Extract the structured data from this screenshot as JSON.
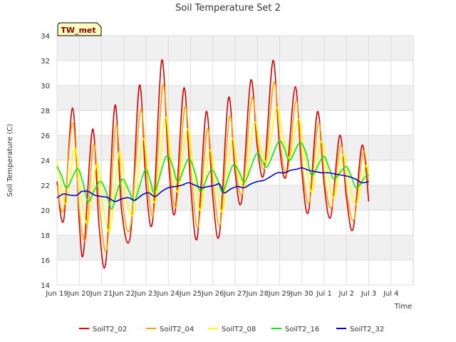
{
  "chart_data": {
    "type": "line",
    "title": "Soil Temperature Set 2",
    "xlabel": "Time",
    "ylabel": "Soil Temperature (C)",
    "annotation": "TW_met",
    "ylim": [
      14,
      34
    ],
    "yticks": [
      14,
      16,
      18,
      20,
      22,
      24,
      26,
      28,
      30,
      32,
      34
    ],
    "xlim": [
      0,
      16
    ],
    "xticks": [
      {
        "x": 0,
        "label": "Jun 19"
      },
      {
        "x": 1,
        "label": "Jun 20"
      },
      {
        "x": 2,
        "label": "Jun 21"
      },
      {
        "x": 3,
        "label": "Jun 22"
      },
      {
        "x": 4,
        "label": "Jun 23"
      },
      {
        "x": 5,
        "label": "Jun 24"
      },
      {
        "x": 6,
        "label": "Jun 25"
      },
      {
        "x": 7,
        "label": "Jun 26"
      },
      {
        "x": 8,
        "label": "Jun 27"
      },
      {
        "x": 9,
        "label": "Jun 28"
      },
      {
        "x": 10,
        "label": "Jun 29"
      },
      {
        "x": 11,
        "label": "Jun 30"
      },
      {
        "x": 12,
        "label": "Jul 1"
      },
      {
        "x": 13,
        "label": "Jul 2"
      },
      {
        "x": 14,
        "label": "Jul 3"
      },
      {
        "x": 15,
        "label": "Jul 4"
      }
    ],
    "grid": true,
    "legend_position": "bottom",
    "series": [
      {
        "name": "SoilT2_02",
        "color": "#dd0000",
        "points": [
          [
            0.0,
            22.3
          ],
          [
            0.3,
            19.2
          ],
          [
            0.7,
            28.2
          ],
          [
            1.0,
            19.0
          ],
          [
            1.2,
            16.7
          ],
          [
            1.6,
            26.5
          ],
          [
            1.9,
            18.5
          ],
          [
            2.2,
            15.9
          ],
          [
            2.6,
            28.4
          ],
          [
            2.9,
            20.0
          ],
          [
            3.3,
            18.0
          ],
          [
            3.7,
            30.0
          ],
          [
            4.0,
            22.0
          ],
          [
            4.3,
            19.2
          ],
          [
            4.7,
            32.0
          ],
          [
            5.0,
            24.0
          ],
          [
            5.3,
            19.8
          ],
          [
            5.7,
            29.8
          ],
          [
            6.0,
            22.0
          ],
          [
            6.3,
            17.8
          ],
          [
            6.7,
            27.9
          ],
          [
            7.0,
            21.0
          ],
          [
            7.3,
            18.1
          ],
          [
            7.7,
            29.0
          ],
          [
            8.0,
            23.0
          ],
          [
            8.3,
            20.8
          ],
          [
            8.7,
            30.4
          ],
          [
            9.0,
            25.0
          ],
          [
            9.3,
            23.0
          ],
          [
            9.7,
            32.0
          ],
          [
            10.0,
            25.0
          ],
          [
            10.3,
            22.8
          ],
          [
            10.7,
            29.9
          ],
          [
            11.0,
            23.0
          ],
          [
            11.3,
            19.9
          ],
          [
            11.7,
            27.9
          ],
          [
            12.0,
            22.0
          ],
          [
            12.3,
            19.5
          ],
          [
            12.7,
            26.0
          ],
          [
            13.0,
            21.0
          ],
          [
            13.3,
            18.5
          ],
          [
            13.7,
            25.2
          ],
          [
            14.0,
            20.7
          ]
        ]
      },
      {
        "name": "SoilT2_04",
        "color": "#ffa500",
        "points": [
          [
            0.0,
            22.0
          ],
          [
            0.3,
            20.0
          ],
          [
            0.7,
            27.0
          ],
          [
            1.0,
            20.0
          ],
          [
            1.3,
            17.8
          ],
          [
            1.65,
            25.3
          ],
          [
            1.95,
            19.5
          ],
          [
            2.25,
            17.0
          ],
          [
            2.65,
            26.8
          ],
          [
            2.95,
            20.5
          ],
          [
            3.3,
            18.7
          ],
          [
            3.75,
            28.0
          ],
          [
            4.05,
            22.5
          ],
          [
            4.35,
            19.8
          ],
          [
            4.75,
            30.0
          ],
          [
            5.05,
            24.0
          ],
          [
            5.35,
            20.3
          ],
          [
            5.75,
            28.3
          ],
          [
            6.05,
            22.5
          ],
          [
            6.35,
            18.7
          ],
          [
            6.75,
            26.5
          ],
          [
            7.05,
            21.5
          ],
          [
            7.35,
            19.0
          ],
          [
            7.75,
            27.5
          ],
          [
            8.05,
            23.0
          ],
          [
            8.35,
            21.5
          ],
          [
            8.75,
            29.0
          ],
          [
            9.05,
            25.0
          ],
          [
            9.35,
            23.5
          ],
          [
            9.75,
            30.3
          ],
          [
            10.05,
            25.0
          ],
          [
            10.35,
            23.0
          ],
          [
            10.75,
            28.8
          ],
          [
            11.05,
            23.0
          ],
          [
            11.35,
            20.7
          ],
          [
            11.75,
            27.0
          ],
          [
            12.05,
            22.0
          ],
          [
            12.35,
            20.3
          ],
          [
            12.75,
            25.2
          ],
          [
            13.05,
            21.0
          ],
          [
            13.35,
            19.3
          ],
          [
            13.75,
            24.7
          ],
          [
            14.0,
            22.0
          ]
        ]
      },
      {
        "name": "SoilT2_08",
        "color": "#ffff00",
        "points": [
          [
            0.0,
            24.0
          ],
          [
            0.4,
            20.5
          ],
          [
            0.8,
            25.0
          ],
          [
            1.1,
            21.0
          ],
          [
            1.4,
            19.0
          ],
          [
            1.8,
            23.8
          ],
          [
            2.1,
            20.0
          ],
          [
            2.4,
            18.5
          ],
          [
            2.8,
            24.7
          ],
          [
            3.1,
            21.0
          ],
          [
            3.45,
            19.8
          ],
          [
            3.85,
            25.7
          ],
          [
            4.15,
            22.5
          ],
          [
            4.45,
            20.8
          ],
          [
            4.85,
            27.4
          ],
          [
            5.15,
            24.0
          ],
          [
            5.45,
            21.5
          ],
          [
            5.85,
            26.5
          ],
          [
            6.15,
            23.0
          ],
          [
            6.45,
            20.0
          ],
          [
            6.85,
            24.8
          ],
          [
            7.15,
            22.0
          ],
          [
            7.45,
            20.0
          ],
          [
            7.85,
            25.7
          ],
          [
            8.15,
            23.0
          ],
          [
            8.45,
            22.0
          ],
          [
            8.85,
            27.0
          ],
          [
            9.15,
            25.0
          ],
          [
            9.45,
            24.0
          ],
          [
            9.85,
            28.2
          ],
          [
            10.15,
            26.0
          ],
          [
            10.45,
            24.2
          ],
          [
            10.85,
            27.3
          ],
          [
            11.15,
            24.0
          ],
          [
            11.45,
            21.5
          ],
          [
            11.85,
            25.5
          ],
          [
            12.15,
            23.0
          ],
          [
            12.45,
            21.0
          ],
          [
            12.85,
            24.5
          ],
          [
            13.15,
            22.0
          ],
          [
            13.45,
            20.5
          ],
          [
            13.85,
            23.5
          ],
          [
            14.0,
            23.0
          ]
        ]
      },
      {
        "name": "SoilT2_16",
        "color": "#00ee00",
        "points": [
          [
            0.0,
            23.5
          ],
          [
            0.2,
            22.8
          ],
          [
            0.45,
            21.8
          ],
          [
            0.9,
            23.3
          ],
          [
            1.15,
            22.3
          ],
          [
            1.4,
            20.7
          ],
          [
            1.65,
            21.5
          ],
          [
            1.95,
            22.3
          ],
          [
            2.2,
            21.5
          ],
          [
            2.45,
            20.1
          ],
          [
            2.7,
            21.5
          ],
          [
            2.95,
            22.5
          ],
          [
            3.25,
            21.5
          ],
          [
            3.5,
            20.8
          ],
          [
            3.95,
            23.2
          ],
          [
            4.2,
            22.3
          ],
          [
            4.4,
            21.5
          ],
          [
            4.9,
            24.3
          ],
          [
            5.2,
            23.5
          ],
          [
            5.45,
            22.3
          ],
          [
            5.9,
            24.1
          ],
          [
            6.2,
            23.0
          ],
          [
            6.45,
            21.5
          ],
          [
            6.9,
            23.2
          ],
          [
            7.2,
            22.5
          ],
          [
            7.45,
            21.5
          ],
          [
            7.9,
            23.6
          ],
          [
            8.2,
            23.0
          ],
          [
            8.45,
            22.3
          ],
          [
            8.95,
            24.5
          ],
          [
            9.2,
            24.0
          ],
          [
            9.45,
            23.5
          ],
          [
            9.95,
            25.5
          ],
          [
            10.2,
            25.0
          ],
          [
            10.45,
            24.0
          ],
          [
            10.9,
            25.4
          ],
          [
            11.2,
            24.5
          ],
          [
            11.45,
            22.8
          ],
          [
            11.95,
            24.3
          ],
          [
            12.2,
            23.5
          ],
          [
            12.45,
            22.5
          ],
          [
            12.95,
            23.5
          ],
          [
            13.2,
            22.8
          ],
          [
            13.45,
            21.8
          ],
          [
            13.85,
            22.7
          ],
          [
            14.0,
            22.8
          ]
        ]
      },
      {
        "name": "SoilT2_32",
        "color": "#0000cc",
        "points": [
          [
            0.0,
            21.0
          ],
          [
            0.3,
            21.3
          ],
          [
            0.6,
            21.2
          ],
          [
            0.9,
            21.2
          ],
          [
            1.1,
            21.5
          ],
          [
            1.4,
            21.5
          ],
          [
            1.7,
            21.2
          ],
          [
            2.0,
            21.1
          ],
          [
            2.3,
            21.0
          ],
          [
            2.6,
            20.7
          ],
          [
            2.9,
            20.9
          ],
          [
            3.2,
            21.0
          ],
          [
            3.5,
            20.8
          ],
          [
            3.8,
            21.2
          ],
          [
            4.1,
            21.4
          ],
          [
            4.4,
            21.1
          ],
          [
            4.7,
            21.5
          ],
          [
            5.0,
            21.8
          ],
          [
            5.3,
            21.9
          ],
          [
            5.6,
            22.0
          ],
          [
            5.9,
            22.2
          ],
          [
            6.2,
            22.0
          ],
          [
            6.5,
            21.8
          ],
          [
            6.8,
            21.9
          ],
          [
            7.1,
            22.0
          ],
          [
            7.3,
            22.1
          ],
          [
            7.5,
            21.4
          ],
          [
            7.8,
            21.7
          ],
          [
            8.1,
            21.9
          ],
          [
            8.4,
            21.8
          ],
          [
            8.7,
            22.1
          ],
          [
            9.0,
            22.3
          ],
          [
            9.3,
            22.4
          ],
          [
            9.6,
            22.7
          ],
          [
            9.9,
            23.0
          ],
          [
            10.2,
            23.0
          ],
          [
            10.5,
            23.2
          ],
          [
            10.8,
            23.3
          ],
          [
            11.0,
            23.4
          ],
          [
            11.3,
            23.2
          ],
          [
            11.6,
            23.1
          ],
          [
            11.9,
            23.0
          ],
          [
            12.2,
            23.0
          ],
          [
            12.5,
            22.9
          ],
          [
            12.8,
            22.8
          ],
          [
            13.1,
            22.7
          ],
          [
            13.4,
            22.5
          ],
          [
            13.7,
            22.2
          ],
          [
            14.0,
            22.3
          ]
        ]
      }
    ]
  }
}
